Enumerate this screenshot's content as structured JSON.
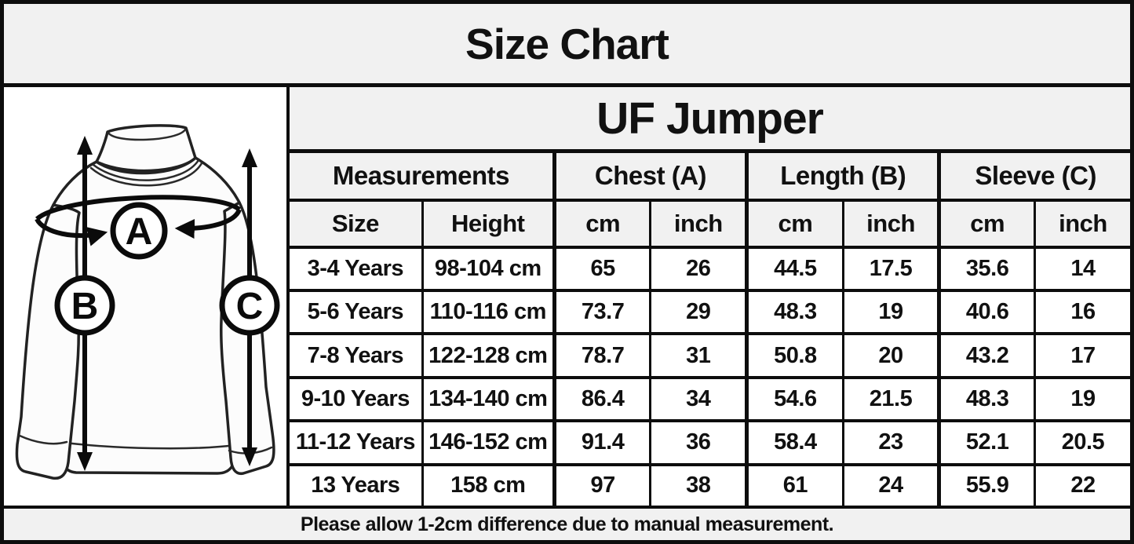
{
  "page_title": "Size Chart",
  "diagram": {
    "marker_a": "A",
    "marker_b": "B",
    "marker_c": "C"
  },
  "table": {
    "product_title": "UF Jumper",
    "group_headers": [
      {
        "label": "Measurements",
        "span": 2
      },
      {
        "label": "Chest (A)",
        "span": 2
      },
      {
        "label": "Length (B)",
        "span": 2
      },
      {
        "label": "Sleeve (C)",
        "span": 2
      }
    ],
    "sub_headers": [
      "Size",
      "Height",
      "cm",
      "inch",
      "cm",
      "inch",
      "cm",
      "inch"
    ],
    "rows": [
      [
        "3-4 Years",
        "98-104 cm",
        "65",
        "26",
        "44.5",
        "17.5",
        "35.6",
        "14"
      ],
      [
        "5-6 Years",
        "110-116 cm",
        "73.7",
        "29",
        "48.3",
        "19",
        "40.6",
        "16"
      ],
      [
        "7-8 Years",
        "122-128 cm",
        "78.7",
        "31",
        "50.8",
        "20",
        "43.2",
        "17"
      ],
      [
        "9-10 Years",
        "134-140 cm",
        "86.4",
        "34",
        "54.6",
        "21.5",
        "48.3",
        "19"
      ],
      [
        "11-12 Years",
        "146-152 cm",
        "91.4",
        "36",
        "58.4",
        "23",
        "52.1",
        "20.5"
      ],
      [
        "13 Years",
        "158 cm",
        "97",
        "38",
        "61",
        "24",
        "55.9",
        "22"
      ]
    ]
  },
  "footer_note": "Please allow 1-2cm difference due to manual measurement.",
  "colors": {
    "header_bg": "#f1f1f1",
    "cell_bg": "#ffffff",
    "border": "#0d0d0d",
    "text": "#111111"
  },
  "chart_data": {
    "type": "table",
    "title": "Size Chart",
    "subtitle": "UF Jumper",
    "columns": [
      "Size",
      "Height",
      "Chest (A) cm",
      "Chest (A) inch",
      "Length (B) cm",
      "Length (B) inch",
      "Sleeve (C) cm",
      "Sleeve (C) inch"
    ],
    "rows": [
      [
        "3-4 Years",
        "98-104 cm",
        65,
        26,
        44.5,
        17.5,
        35.6,
        14
      ],
      [
        "5-6 Years",
        "110-116 cm",
        73.7,
        29,
        48.3,
        19,
        40.6,
        16
      ],
      [
        "7-8 Years",
        "122-128 cm",
        78.7,
        31,
        50.8,
        20,
        43.2,
        17
      ],
      [
        "9-10 Years",
        "134-140 cm",
        86.4,
        34,
        54.6,
        21.5,
        48.3,
        19
      ],
      [
        "11-12 Years",
        "146-152 cm",
        91.4,
        36,
        58.4,
        23,
        52.1,
        20.5
      ],
      [
        "13 Years",
        "158 cm",
        97,
        38,
        61,
        24,
        55.9,
        22
      ]
    ],
    "note": "Please allow 1-2cm difference due to manual measurement."
  }
}
